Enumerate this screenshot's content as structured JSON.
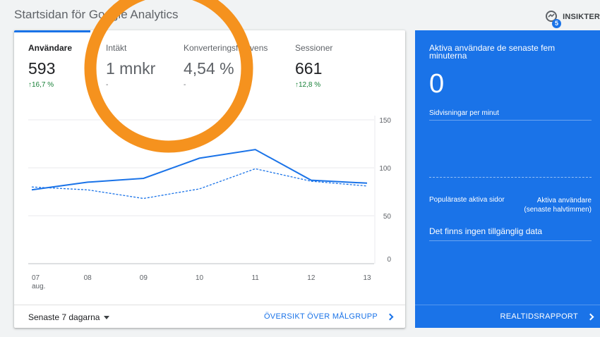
{
  "page": {
    "title": "Startsidan för Google Analytics"
  },
  "insights": {
    "label": "INSIKTER",
    "badge": "5",
    "icon": "insights-icon"
  },
  "metrics": [
    {
      "label": "Användare",
      "value": "593",
      "change": "16,7 %",
      "trend": "up"
    },
    {
      "label": "Intäkt",
      "value": "1 mnkr",
      "change": "-",
      "trend": "none"
    },
    {
      "label": "Konverteringsfrekvens",
      "value": "4,54 %",
      "change": "-",
      "trend": "none"
    },
    {
      "label": "Sessioner",
      "value": "661",
      "change": "12,8 %",
      "trend": "up"
    }
  ],
  "chart_data": {
    "type": "line",
    "x": [
      "07",
      "08",
      "09",
      "10",
      "11",
      "12",
      "13"
    ],
    "x_sub": {
      "07": "aug."
    },
    "ylim": [
      0,
      150
    ],
    "yticks": [
      0,
      50,
      100,
      150
    ],
    "grid": true,
    "series": [
      {
        "values": [
          77,
          85,
          89,
          110,
          119,
          87,
          84
        ],
        "style": "solid",
        "color": "#1a73e8"
      },
      {
        "values": [
          80,
          77,
          68,
          78,
          99,
          86,
          81
        ],
        "style": "dashed",
        "color": "#1a73e8"
      }
    ]
  },
  "footer": {
    "range": "Senaste 7 dagarna",
    "link": "ÖVERSIKT ÖVER MÅLGRUPP"
  },
  "realtime": {
    "title": "Aktiva användare de senaste fem minuterna",
    "value": "0",
    "pageviews_label": "Sidvisningar per minut",
    "pages_label": "Populäraste aktiva sidor",
    "active_label": "Aktiva användare (senaste halvtimmen)",
    "no_data": "Det finns ingen tillgänglig data",
    "report_link": "REALTIDSRAPPORT"
  },
  "colors": {
    "accent": "#1a73e8",
    "annotation": "#f5921e",
    "positive": "#188038"
  }
}
